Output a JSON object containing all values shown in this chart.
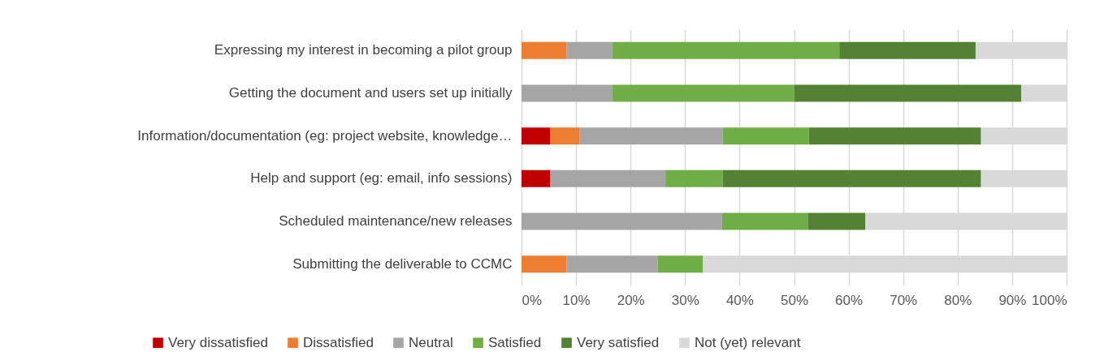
{
  "chart_data": {
    "type": "bar",
    "orientation": "horizontal",
    "stacked": true,
    "categories": [
      "Expressing my interest in becoming a pilot group",
      "Getting the document and users set up initially",
      "Information/documentation (eg: project website, knowledge…",
      "Help and support (eg: email, info sessions)",
      "Scheduled maintenance/new releases",
      "Submitting the deliverable to CCMC"
    ],
    "series": [
      {
        "name": "Very dissatisfied",
        "color": "#c00000",
        "values": [
          0,
          0,
          5.3,
          5.3,
          0,
          0
        ]
      },
      {
        "name": "Dissatisfied",
        "color": "#ed7d31",
        "values": [
          8.3,
          0,
          5.3,
          0,
          0,
          8.3
        ]
      },
      {
        "name": "Neutral",
        "color": "#a5a5a5",
        "values": [
          8.3,
          16.7,
          26.3,
          21.1,
          36.8,
          16.7
        ]
      },
      {
        "name": "Satisfied",
        "color": "#70ad47",
        "values": [
          41.7,
          33.3,
          15.8,
          10.5,
          15.8,
          8.3
        ]
      },
      {
        "name": "Very satisfied",
        "color": "#548235",
        "values": [
          25,
          41.7,
          31.6,
          47.4,
          10.5,
          0
        ]
      },
      {
        "name": "Not (yet) relevant",
        "color": "#d9d9d9",
        "values": [
          16.7,
          8.3,
          15.7,
          15.7,
          36.9,
          66.7
        ]
      }
    ],
    "xlim": [
      0,
      100
    ],
    "xticks": [
      {
        "value": 0,
        "label": "0%"
      },
      {
        "value": 10,
        "label": "10%"
      },
      {
        "value": 20,
        "label": "20%"
      },
      {
        "value": 30,
        "label": "30%"
      },
      {
        "value": 40,
        "label": "40%"
      },
      {
        "value": 50,
        "label": "50%"
      },
      {
        "value": 60,
        "label": "60%"
      },
      {
        "value": 70,
        "label": "70%"
      },
      {
        "value": 80,
        "label": "80%"
      },
      {
        "value": 90,
        "label": "90%"
      },
      {
        "value": 100,
        "label": "100%"
      }
    ],
    "grid": "x",
    "legend": "bottom"
  }
}
